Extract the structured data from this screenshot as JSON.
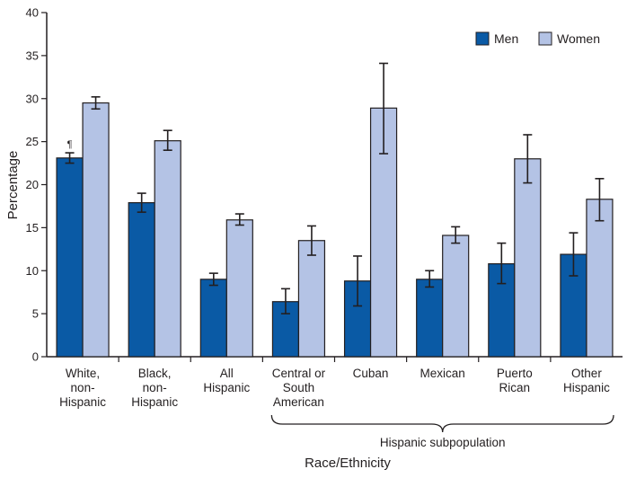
{
  "chart_data": {
    "type": "bar",
    "title": "",
    "xlabel": "Race/Ethnicity",
    "ylabel": "Percentage",
    "ylim": [
      0,
      40
    ],
    "yticks": [
      0,
      5,
      10,
      15,
      20,
      25,
      30,
      35,
      40
    ],
    "grid": false,
    "legend_position": "top-right",
    "categories": [
      [
        "White,",
        "non-",
        "Hispanic"
      ],
      [
        "Black,",
        "non-",
        "Hispanic"
      ],
      [
        "All",
        "Hispanic"
      ],
      [
        "Central or",
        "South",
        "American"
      ],
      [
        "Cuban"
      ],
      [
        "Mexican"
      ],
      [
        "Puerto",
        "Rican"
      ],
      [
        "Other",
        "Hispanic"
      ]
    ],
    "series": [
      {
        "name": "Men",
        "color": "#0a5aa5",
        "values": [
          23.1,
          17.9,
          9.0,
          6.4,
          8.8,
          9.0,
          10.8,
          11.9
        ],
        "ci": [
          [
            22.5,
            23.7
          ],
          [
            16.8,
            19.0
          ],
          [
            8.3,
            9.7
          ],
          [
            5.0,
            7.9
          ],
          [
            5.9,
            11.7
          ],
          [
            8.1,
            10.0
          ],
          [
            8.5,
            13.2
          ],
          [
            9.4,
            14.4
          ]
        ]
      },
      {
        "name": "Women",
        "color": "#b4c3e5",
        "values": [
          29.5,
          25.1,
          15.9,
          13.5,
          28.9,
          14.1,
          23.0,
          18.3
        ],
        "ci": [
          [
            28.8,
            30.2
          ],
          [
            24.0,
            26.3
          ],
          [
            15.3,
            16.6
          ],
          [
            11.8,
            15.2
          ],
          [
            23.6,
            34.1
          ],
          [
            13.2,
            15.1
          ],
          [
            20.2,
            25.8
          ],
          [
            15.8,
            20.7
          ]
        ]
      }
    ],
    "annotations": [
      {
        "text": "¶",
        "category_index": 0,
        "series_index": 0
      }
    ],
    "bracket_label": "Hispanic subpopulation",
    "bracket_categories": [
      3,
      7
    ]
  }
}
